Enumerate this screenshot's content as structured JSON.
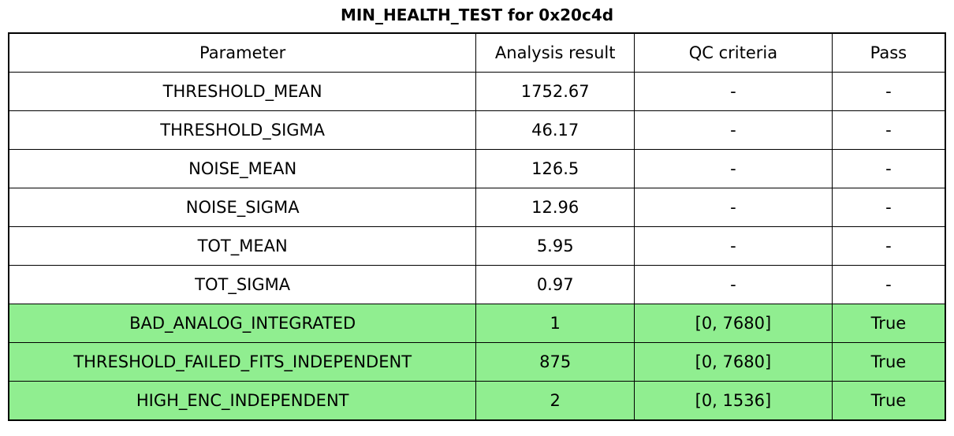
{
  "chart_data": {
    "type": "table",
    "title": "MIN_HEALTH_TEST for 0x20c4d",
    "columns": [
      "Parameter",
      "Analysis result",
      "QC criteria",
      "Pass"
    ],
    "rows": [
      [
        "THRESHOLD_MEAN",
        "1752.67",
        "-",
        "-"
      ],
      [
        "THRESHOLD_SIGMA",
        "46.17",
        "-",
        "-"
      ],
      [
        "NOISE_MEAN",
        "126.5",
        "-",
        "-"
      ],
      [
        "NOISE_SIGMA",
        "12.96",
        "-",
        "-"
      ],
      [
        "TOT_MEAN",
        "5.95",
        "-",
        "-"
      ],
      [
        "TOT_SIGMA",
        "0.97",
        "-",
        "-"
      ],
      [
        "BAD_ANALOG_INTEGRATED",
        "1",
        "[0, 7680]",
        "True"
      ],
      [
        "THRESHOLD_FAILED_FITS_INDEPENDENT",
        "875",
        "[0, 7680]",
        "True"
      ],
      [
        "HIGH_ENC_INDEPENDENT",
        "2",
        "[0, 1536]",
        "True"
      ]
    ],
    "highlighted_rows": [
      6,
      7,
      8
    ],
    "highlight_color": "#90EE90",
    "text_color": "#000000",
    "border_color": "#000000",
    "background_color": "#ffffff",
    "legend_position": "none",
    "grid": true
  }
}
